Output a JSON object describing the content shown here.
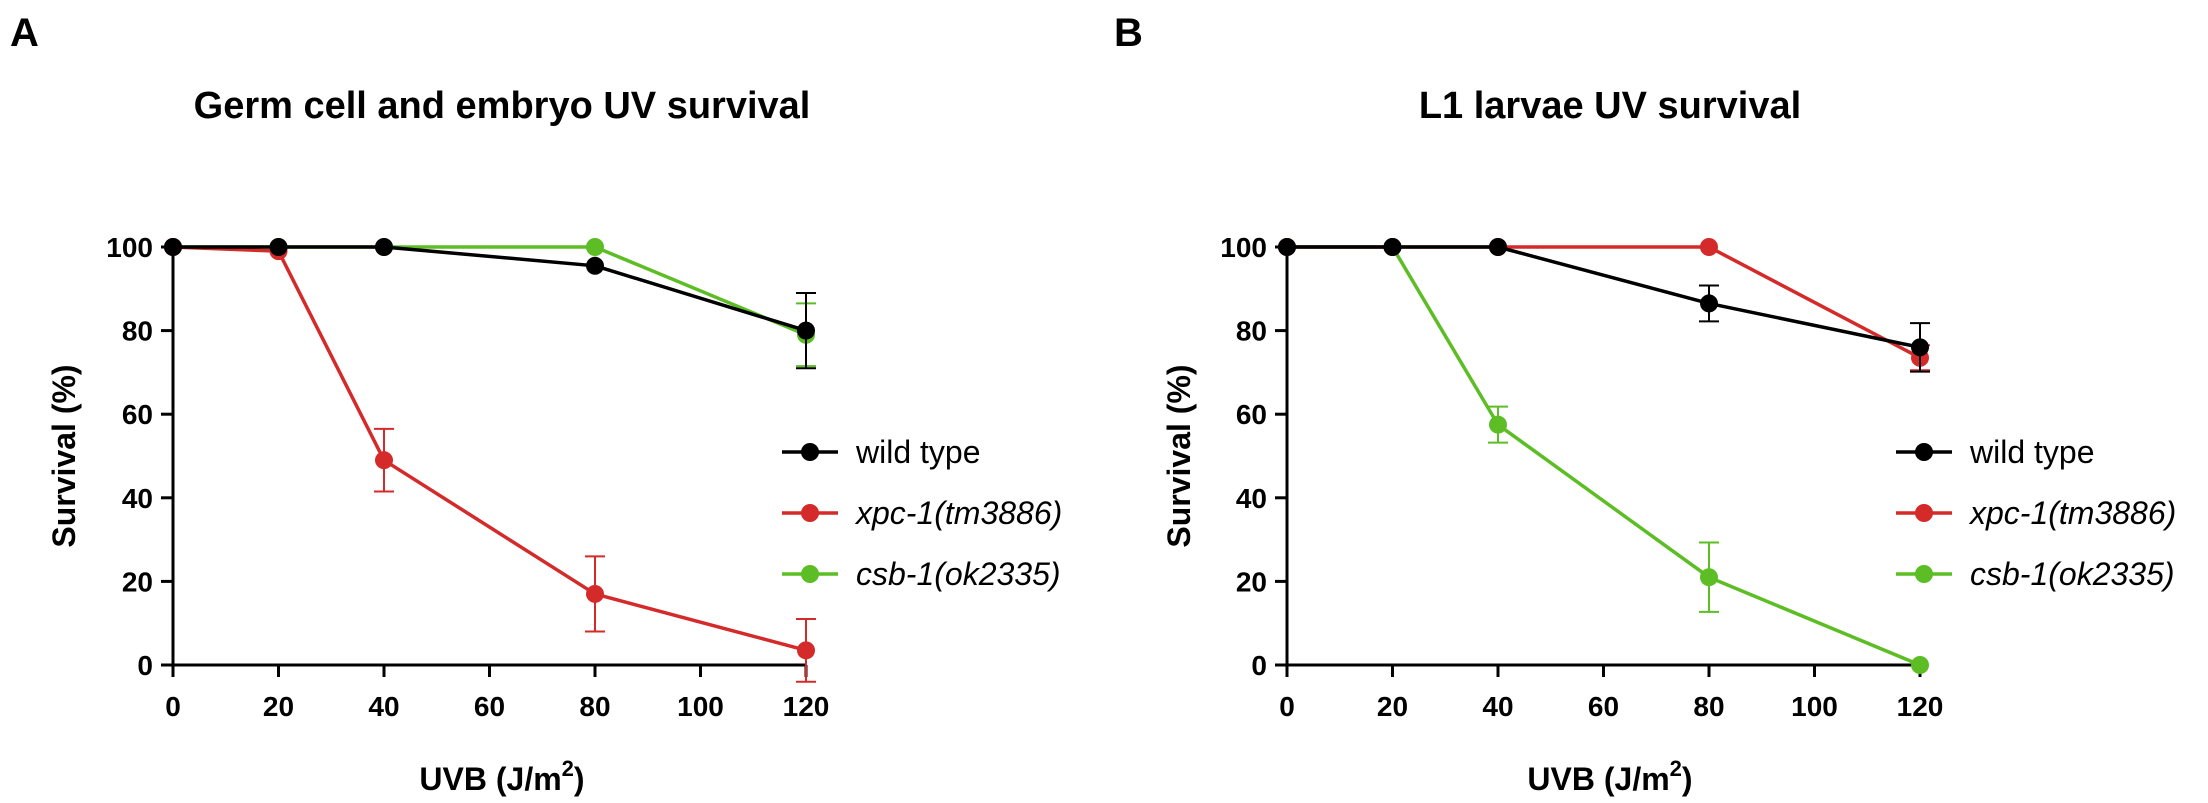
{
  "colors": {
    "wild_type": "#000000",
    "xpc1": "#d42a2a",
    "csb1": "#5cbd25"
  },
  "chart_data": [
    {
      "panel_letter": "A",
      "type": "line",
      "title": "Germ cell and embryo UV survival",
      "xlabel_main": "UVB  (J/m",
      "xlabel_sup": "2",
      "xlabel_end": ")",
      "ylabel": "Survival (%)",
      "xlim": [
        0,
        120
      ],
      "ylim": [
        0,
        100
      ],
      "x_ticks": [
        0,
        20,
        40,
        60,
        80,
        100,
        120
      ],
      "y_ticks": [
        0,
        20,
        40,
        60,
        80,
        100
      ],
      "x_tick_labels": [
        "0",
        "20",
        "40",
        "60",
        "80",
        "100",
        "120"
      ],
      "y_tick_labels": [
        "0",
        "20",
        "40",
        "60",
        "80",
        "100"
      ],
      "legend_position": "right",
      "grid": false,
      "series": [
        {
          "name": "wild type",
          "italic": false,
          "color": "#000000",
          "x": [
            0,
            20,
            40,
            80,
            120
          ],
          "y": [
            100,
            100,
            100,
            95.5,
            80
          ],
          "err": [
            0,
            0,
            0,
            0,
            9
          ]
        },
        {
          "name": "xpc-1(tm3886)",
          "italic": true,
          "color": "#d42a2a",
          "x": [
            0,
            20,
            40,
            80,
            120
          ],
          "y": [
            100,
            99,
            49,
            17,
            3.5
          ],
          "err": [
            0,
            0,
            7.5,
            9,
            7.5
          ]
        },
        {
          "name": "csb-1(ok2335)",
          "italic": true,
          "color": "#5cbd25",
          "x": [
            0,
            20,
            40,
            80,
            120
          ],
          "y": [
            100,
            100,
            100,
            100,
            79
          ],
          "err": [
            0,
            0,
            0,
            0,
            7.5
          ]
        }
      ]
    },
    {
      "panel_letter": "B",
      "type": "line",
      "title": "L1 larvae UV survival",
      "xlabel_main": "UVB  (J/m",
      "xlabel_sup": "2",
      "xlabel_end": ")",
      "ylabel": "Survival (%)",
      "xlim": [
        0,
        120
      ],
      "ylim": [
        0,
        100
      ],
      "x_ticks": [
        0,
        20,
        40,
        60,
        80,
        100,
        120
      ],
      "y_ticks": [
        0,
        20,
        40,
        60,
        80,
        100
      ],
      "x_tick_labels": [
        "0",
        "20",
        "40",
        "60",
        "80",
        "100",
        "120"
      ],
      "y_tick_labels": [
        "0",
        "20",
        "40",
        "60",
        "80",
        "100"
      ],
      "legend_position": "right",
      "grid": false,
      "series": [
        {
          "name": "wild type",
          "italic": false,
          "color": "#000000",
          "x": [
            0,
            20,
            40,
            80,
            120
          ],
          "y": [
            100,
            100,
            100,
            86.5,
            76
          ],
          "err": [
            0,
            0,
            0,
            4.3,
            5.8
          ]
        },
        {
          "name": "xpc-1(tm3886)",
          "italic": true,
          "color": "#d42a2a",
          "x": [
            0,
            20,
            40,
            80,
            120
          ],
          "y": [
            100,
            100,
            100,
            100,
            73.5
          ],
          "err": [
            0,
            0,
            0,
            0,
            3
          ]
        },
        {
          "name": "csb-1(ok2335)",
          "italic": true,
          "color": "#5cbd25",
          "x": [
            0,
            20,
            40,
            80,
            120
          ],
          "y": [
            100,
            100,
            57.5,
            21,
            0
          ],
          "err": [
            0,
            0,
            4.3,
            8.3,
            0
          ]
        }
      ]
    }
  ]
}
